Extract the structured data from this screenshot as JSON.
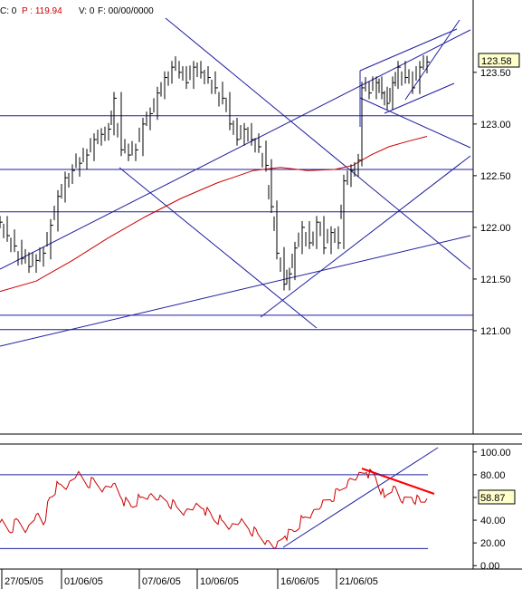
{
  "header": {
    "c_label": "C: 0",
    "p_label": "P : 119.94",
    "v_label": "V: 0",
    "f_label": "F: 00/00/0000"
  },
  "chart_data": [
    {
      "type": "line",
      "panel": "price",
      "ylim": [
        120.0,
        124.2
      ],
      "y_ticks": [
        121.0,
        121.5,
        122.0,
        122.5,
        123.0,
        123.5
      ],
      "y_tick_labels": [
        "121.00",
        "121.50",
        "122.00",
        "122.50",
        "123.00",
        "123.50"
      ],
      "last_value": "123.58",
      "grid": false,
      "horizontal_levels": [
        123.08,
        122.56,
        122.15,
        121.15,
        121.01
      ],
      "price_series": [
        [
          0,
          122.05
        ],
        [
          8,
          121.92
        ],
        [
          16,
          121.82
        ],
        [
          24,
          121.7
        ],
        [
          32,
          121.62
        ],
        [
          40,
          121.68
        ],
        [
          48,
          121.75
        ],
        [
          56,
          122.02
        ],
        [
          64,
          122.3
        ],
        [
          72,
          122.48
        ],
        [
          80,
          122.55
        ],
        [
          88,
          122.62
        ],
        [
          96,
          122.7
        ],
        [
          104,
          122.85
        ],
        [
          112,
          122.9
        ],
        [
          120,
          122.95
        ],
        [
          126,
          123.25
        ],
        [
          134,
          122.75
        ],
        [
          142,
          122.7
        ],
        [
          150,
          122.75
        ],
        [
          158,
          123.0
        ],
        [
          166,
          123.1
        ],
        [
          174,
          123.3
        ],
        [
          182,
          123.45
        ],
        [
          190,
          123.55
        ],
        [
          198,
          123.5
        ],
        [
          206,
          123.4
        ],
        [
          214,
          123.55
        ],
        [
          222,
          123.5
        ],
        [
          230,
          123.45
        ],
        [
          238,
          123.35
        ],
        [
          246,
          123.25
        ],
        [
          254,
          123.0
        ],
        [
          262,
          122.85
        ],
        [
          270,
          122.95
        ],
        [
          278,
          122.85
        ],
        [
          286,
          122.78
        ],
        [
          294,
          122.6
        ],
        [
          300,
          122.2
        ],
        [
          306,
          121.75
        ],
        [
          314,
          121.45
        ],
        [
          320,
          121.55
        ],
        [
          326,
          121.8
        ],
        [
          334,
          122.0
        ],
        [
          342,
          121.85
        ],
        [
          350,
          122.05
        ],
        [
          358,
          121.8
        ],
        [
          366,
          121.95
        ],
        [
          374,
          121.85
        ],
        [
          380,
          122.45
        ],
        [
          388,
          122.55
        ],
        [
          396,
          122.65
        ],
        [
          400,
          123.35
        ],
        [
          408,
          123.3
        ],
        [
          416,
          123.4
        ],
        [
          422,
          123.3
        ],
        [
          428,
          123.2
        ],
        [
          434,
          123.4
        ],
        [
          440,
          123.55
        ],
        [
          448,
          123.45
        ],
        [
          456,
          123.35
        ],
        [
          464,
          123.55
        ],
        [
          472,
          123.6
        ]
      ],
      "moving_average": [
        [
          0,
          121.38
        ],
        [
          40,
          121.48
        ],
        [
          48,
          121.52
        ],
        [
          80,
          121.68
        ],
        [
          120,
          121.9
        ],
        [
          160,
          122.1
        ],
        [
          200,
          122.28
        ],
        [
          240,
          122.43
        ],
        [
          280,
          122.55
        ],
        [
          310,
          122.58
        ],
        [
          340,
          122.55
        ],
        [
          370,
          122.56
        ],
        [
          390,
          122.6
        ],
        [
          410,
          122.7
        ],
        [
          430,
          122.78
        ],
        [
          450,
          122.83
        ],
        [
          472,
          122.88
        ]
      ]
    },
    {
      "type": "line",
      "panel": "oscillator",
      "ylim": [
        -3.0,
        107.0
      ],
      "y_ticks": [
        0,
        20,
        40,
        60,
        80,
        100
      ],
      "y_tick_labels": [
        "0.00",
        "20.00",
        "40.00",
        "60.00",
        "80.00",
        "100.00"
      ],
      "last_value": "58.87",
      "horizontal_levels": [
        80,
        15
      ],
      "series": [
        [
          0,
          38
        ],
        [
          10,
          30
        ],
        [
          20,
          40
        ],
        [
          30,
          32
        ],
        [
          40,
          45
        ],
        [
          48,
          36
        ],
        [
          55,
          60
        ],
        [
          65,
          72
        ],
        [
          75,
          70
        ],
        [
          85,
          80
        ],
        [
          95,
          72
        ],
        [
          105,
          74
        ],
        [
          115,
          68
        ],
        [
          125,
          72
        ],
        [
          135,
          58
        ],
        [
          145,
          52
        ],
        [
          155,
          60
        ],
        [
          165,
          62
        ],
        [
          175,
          58
        ],
        [
          185,
          56
        ],
        [
          195,
          52
        ],
        [
          205,
          48
        ],
        [
          215,
          52
        ],
        [
          225,
          50
        ],
        [
          235,
          42
        ],
        [
          245,
          40
        ],
        [
          255,
          34
        ],
        [
          265,
          38
        ],
        [
          275,
          32
        ],
        [
          285,
          28
        ],
        [
          295,
          22
        ],
        [
          305,
          16
        ],
        [
          315,
          26
        ],
        [
          325,
          30
        ],
        [
          335,
          42
        ],
        [
          345,
          46
        ],
        [
          355,
          52
        ],
        [
          365,
          58
        ],
        [
          375,
          66
        ],
        [
          385,
          75
        ],
        [
          395,
          78
        ],
        [
          405,
          82
        ],
        [
          415,
          78
        ],
        [
          425,
          60
        ],
        [
          435,
          70
        ],
        [
          445,
          55
        ],
        [
          455,
          60
        ],
        [
          465,
          56
        ],
        [
          472,
          59
        ]
      ]
    }
  ],
  "x_axis": {
    "labels": [
      "27/05/05",
      "01/06/05",
      "07/06/05",
      "10/06/05",
      "16/06/05",
      "21/06/05"
    ],
    "positions": [
      32,
      98,
      184,
      248,
      337,
      402
    ]
  },
  "colors": {
    "price": "#000000",
    "moving_average": "#cc0000",
    "trendline": "#1e1ea0",
    "oscillator": "#cc0000",
    "oscillator_trend_red": "#ff0000",
    "axis": "#000000",
    "background": "#ffffff",
    "last_value_box": "#ffffcc"
  }
}
